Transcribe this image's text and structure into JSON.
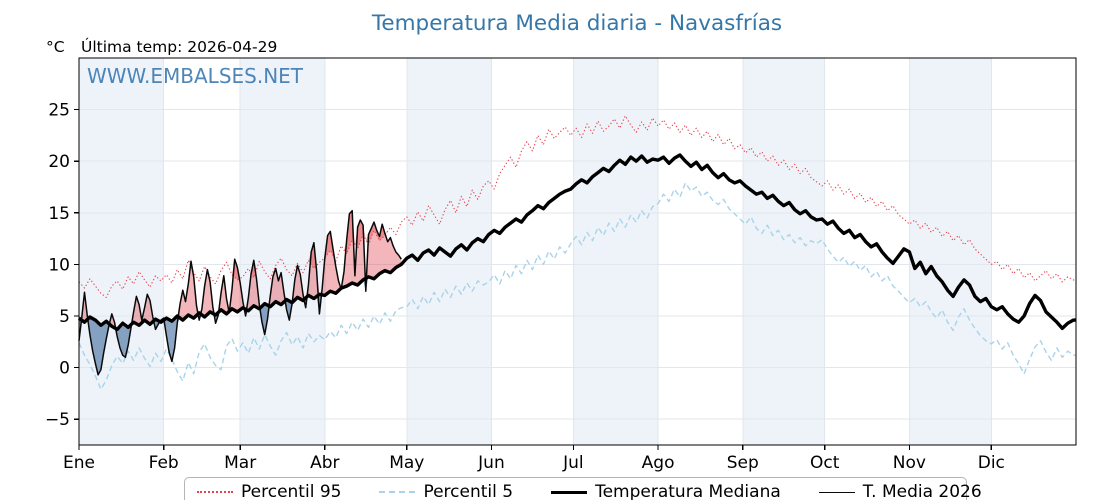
{
  "title": "Temperatura Media diaria - Navasfrías",
  "unit_label": "°C",
  "last_temp_label": "Última temp: 2026-04-29",
  "watermark": "WWW.EMBALSES.NET",
  "colors": {
    "title_blue": "#3577a8",
    "watermark_blue": "#3b7ab0",
    "grid": "#e2e7ee",
    "month_band": "#eef3f9",
    "spine": "#000000",
    "fill_above_median": "rgba(226,73,82,0.40)",
    "fill_below_median": "rgba(47,92,148,0.55)"
  },
  "legend": {
    "items": [
      {
        "label": "Percentil 95"
      },
      {
        "label": "Percentil 5"
      },
      {
        "label": "Temperatura Mediana"
      },
      {
        "label": "T. Media 2026"
      }
    ]
  },
  "chart_data": {
    "type": "line",
    "title": "Temperatura Media diaria - Navasfrías",
    "xlabel": "",
    "ylabel": "°C",
    "ylim": [
      -7.5,
      30
    ],
    "yticks": [
      -5,
      0,
      5,
      10,
      15,
      20,
      25
    ],
    "grid": true,
    "legend_position": "bottom",
    "days_in_year": 365,
    "month_labels": [
      "Ene",
      "Feb",
      "Mar",
      "Abr",
      "May",
      "Jun",
      "Jul",
      "Ago",
      "Sep",
      "Oct",
      "Nov",
      "Dic"
    ],
    "month_start_days": [
      0,
      31,
      59,
      90,
      120,
      151,
      181,
      212,
      243,
      273,
      304,
      334
    ],
    "shaded_month_indices": [
      0,
      2,
      4,
      6,
      8,
      10
    ],
    "series": [
      {
        "name": "Percentil 95",
        "color": "#e5444d",
        "style": "dotted",
        "width": 1.1,
        "day_step": 2,
        "values": [
          8.3,
          7.7,
          8.6,
          7.9,
          7.2,
          6.8,
          7.9,
          8.4,
          7.6,
          8.8,
          8.1,
          9.3,
          8.5,
          7.8,
          8.9,
          8.4,
          9.0,
          8.2,
          9.5,
          8.6,
          10.4,
          9.2,
          8.4,
          9.8,
          8.8,
          8.1,
          9.4,
          10.2,
          9.0,
          8.5,
          8.8,
          9.6,
          8.7,
          10.3,
          9.3,
          8.6,
          9.9,
          10.6,
          9.5,
          8.9,
          10.1,
          9.2,
          10.4,
          9.6,
          10.2,
          10.6,
          11.4,
          10.3,
          11.8,
          11.0,
          12.4,
          11.5,
          12.9,
          11.9,
          13.3,
          12.3,
          12.8,
          13.6,
          12.9,
          14.1,
          14.6,
          13.8,
          15.1,
          14.2,
          15.7,
          14.8,
          13.9,
          15.3,
          16.2,
          15.0,
          16.6,
          15.6,
          17.2,
          16.3,
          17.6,
          18.1,
          17.3,
          18.8,
          19.6,
          20.4,
          19.4,
          21.0,
          21.9,
          21.0,
          22.5,
          21.6,
          23.1,
          22.2,
          22.8,
          23.3,
          22.5,
          23.2,
          22.3,
          23.6,
          22.7,
          23.9,
          22.9,
          23.4,
          24.1,
          23.2,
          24.4,
          23.5,
          22.8,
          23.8,
          23.0,
          24.2,
          23.4,
          24.0,
          23.1,
          23.7,
          22.8,
          23.5,
          22.5,
          23.2,
          22.3,
          22.9,
          21.9,
          22.6,
          21.6,
          22.2,
          21.2,
          21.6,
          20.8,
          21.3,
          20.4,
          20.9,
          20.0,
          20.5,
          19.6,
          20.1,
          19.2,
          19.7,
          18.8,
          19.3,
          18.4,
          18.0,
          17.6,
          18.1,
          17.2,
          17.7,
          16.8,
          17.3,
          16.4,
          16.9,
          16.0,
          16.5,
          15.6,
          16.1,
          15.2,
          15.7,
          14.8,
          14.4,
          13.9,
          14.3,
          13.5,
          14.0,
          13.1,
          13.6,
          12.7,
          13.2,
          12.3,
          12.8,
          11.9,
          12.4,
          11.5,
          11.0,
          10.5,
          10.0,
          10.3,
          9.5,
          10.0,
          9.1,
          9.6,
          8.7,
          9.2,
          8.4,
          8.9,
          9.4,
          8.6,
          9.1,
          8.3,
          8.8,
          8.5
        ]
      },
      {
        "name": "Percentil 5",
        "color": "#a9d3e9",
        "style": "dashed",
        "width": 1.4,
        "day_step": 2,
        "values": [
          2.4,
          1.2,
          0.3,
          -0.8,
          -2.1,
          -1.2,
          0.2,
          1.1,
          0.4,
          1.6,
          0.7,
          1.9,
          0.9,
          0.1,
          1.4,
          0.6,
          1.8,
          0.8,
          -0.4,
          -1.3,
          0.5,
          -0.6,
          1.5,
          2.3,
          1.0,
          0.2,
          -0.2,
          2.1,
          2.8,
          1.6,
          2.4,
          1.4,
          2.9,
          1.8,
          3.2,
          2.1,
          1.2,
          2.6,
          3.4,
          2.2,
          3.0,
          1.9,
          3.3,
          2.5,
          3.1,
          2.7,
          3.5,
          2.9,
          4.1,
          3.3,
          4.4,
          3.6,
          4.7,
          3.9,
          5.0,
          4.2,
          5.3,
          4.5,
          5.5,
          5.8,
          5.9,
          6.6,
          5.7,
          6.9,
          6.1,
          7.3,
          6.4,
          7.6,
          6.8,
          7.9,
          7.1,
          8.2,
          7.4,
          8.4,
          8.0,
          8.3,
          9.0,
          8.1,
          9.4,
          8.6,
          9.9,
          9.1,
          10.4,
          9.5,
          10.9,
          10.0,
          11.3,
          10.5,
          11.7,
          11.1,
          12.0,
          12.7,
          11.9,
          13.1,
          12.3,
          13.6,
          12.8,
          14.0,
          13.2,
          14.4,
          13.6,
          14.8,
          14.1,
          15.2,
          14.5,
          15.6,
          15.9,
          16.8,
          16.1,
          17.3,
          16.5,
          17.9,
          17.1,
          17.5,
          16.6,
          17.0,
          16.2,
          15.8,
          16.3,
          15.4,
          14.9,
          14.4,
          13.9,
          14.6,
          13.5,
          13.0,
          13.8,
          12.8,
          13.3,
          12.4,
          12.9,
          12.1,
          12.6,
          11.8,
          12.3,
          12.0,
          12.4,
          11.5,
          10.8,
          10.2,
          10.7,
          9.8,
          10.3,
          9.4,
          9.9,
          8.8,
          9.3,
          8.4,
          8.9,
          7.9,
          7.4,
          6.8,
          6.3,
          6.7,
          5.9,
          6.4,
          5.4,
          4.8,
          5.6,
          4.4,
          3.6,
          4.9,
          5.7,
          4.6,
          3.8,
          3.1,
          2.6,
          2.3,
          2.7,
          1.8,
          2.4,
          1.2,
          0.4,
          -0.6,
          0.8,
          2.0,
          2.6,
          1.5,
          0.7,
          1.9,
          1.0,
          1.6,
          1.2
        ]
      },
      {
        "name": "Temperatura Mediana",
        "color": "#000000",
        "style": "solid",
        "width": 3.4,
        "day_step": 2,
        "values": [
          4.8,
          4.4,
          4.9,
          4.6,
          4.1,
          4.5,
          4.0,
          3.7,
          4.3,
          3.9,
          4.4,
          4.1,
          4.6,
          4.2,
          4.7,
          4.4,
          4.8,
          4.5,
          5.0,
          4.6,
          5.1,
          4.8,
          5.3,
          4.9,
          5.4,
          5.1,
          5.6,
          5.2,
          5.7,
          5.4,
          5.8,
          5.5,
          6.0,
          5.7,
          6.2,
          5.9,
          6.4,
          6.1,
          6.6,
          6.3,
          6.8,
          6.5,
          7.0,
          6.7,
          7.1,
          7.0,
          7.4,
          7.2,
          7.7,
          7.9,
          8.2,
          8.0,
          8.5,
          8.8,
          8.6,
          9.1,
          9.4,
          9.2,
          9.7,
          10.0,
          10.6,
          10.9,
          10.4,
          11.1,
          11.4,
          10.9,
          11.6,
          11.2,
          10.8,
          11.5,
          11.9,
          11.4,
          12.1,
          12.5,
          12.2,
          12.9,
          13.3,
          13.0,
          13.6,
          14.0,
          14.4,
          14.1,
          14.8,
          15.2,
          15.7,
          15.4,
          16.0,
          16.4,
          16.8,
          17.1,
          17.3,
          17.8,
          18.2,
          17.9,
          18.5,
          18.9,
          19.3,
          19.0,
          19.6,
          20.1,
          19.7,
          20.4,
          20.0,
          20.5,
          19.9,
          20.2,
          20.1,
          20.4,
          19.8,
          20.3,
          20.6,
          20.0,
          19.5,
          19.9,
          19.2,
          19.6,
          18.9,
          18.4,
          18.8,
          18.2,
          17.9,
          18.1,
          17.6,
          17.2,
          16.8,
          17.0,
          16.4,
          16.7,
          16.1,
          15.7,
          16.0,
          15.3,
          14.9,
          15.2,
          14.6,
          14.3,
          14.4,
          13.9,
          14.2,
          13.5,
          13.0,
          13.3,
          12.6,
          12.9,
          12.2,
          11.7,
          12.0,
          11.2,
          10.6,
          10.1,
          10.8,
          11.5,
          11.2,
          9.6,
          10.2,
          9.1,
          9.8,
          8.9,
          8.3,
          7.5,
          6.9,
          7.8,
          8.5,
          8.0,
          6.9,
          6.4,
          6.7,
          5.9,
          5.6,
          5.9,
          5.2,
          4.7,
          4.4,
          5.0,
          6.2,
          7.0,
          6.5,
          5.4,
          4.9,
          4.4,
          3.8,
          4.3,
          4.6
        ]
      },
      {
        "name": "T. Media 2026",
        "color": "#0a0a0a",
        "style": "solid",
        "width": 1.5,
        "day_step": 1,
        "values": [
          2.6,
          4.8,
          7.3,
          5.1,
          3.2,
          1.6,
          0.4,
          -0.7,
          -0.2,
          1.4,
          2.8,
          4.1,
          5.2,
          4.4,
          3.0,
          1.9,
          1.2,
          1.0,
          2.2,
          3.8,
          5.4,
          6.9,
          6.1,
          4.6,
          5.8,
          7.1,
          6.5,
          4.9,
          3.7,
          4.2,
          4.6,
          4.8,
          3.1,
          1.5,
          0.6,
          1.9,
          4.3,
          6.2,
          7.5,
          6.4,
          8.1,
          10.3,
          8.8,
          6.0,
          4.6,
          5.7,
          7.9,
          9.5,
          8.3,
          5.9,
          4.3,
          5.1,
          7.2,
          8.9,
          6.7,
          5.3,
          7.6,
          10.5,
          9.7,
          8.2,
          6.4,
          5.0,
          6.8,
          9.1,
          10.4,
          8.6,
          6.1,
          4.4,
          3.2,
          4.7,
          6.9,
          8.8,
          9.6,
          8.4,
          9.2,
          7.3,
          5.6,
          4.6,
          6.2,
          8.5,
          9.9,
          9.0,
          7.1,
          5.8,
          8.0,
          11.2,
          12.1,
          9.4,
          5.2,
          7.6,
          10.6,
          12.8,
          13.2,
          11.5,
          9.8,
          8.4,
          7.6,
          9.3,
          12.4,
          14.9,
          15.2,
          8.9,
          13.6,
          14.3,
          13.8,
          7.4,
          12.9,
          13.5,
          14.1,
          13.3,
          12.7,
          13.9,
          13.0,
          12.2,
          12.6,
          11.8,
          11.2,
          10.9,
          10.5
        ]
      }
    ],
    "fills": {
      "between": [
        "T. Media 2026",
        "Temperatura Mediana"
      ],
      "above_color": "rgba(226,73,82,0.40)",
      "below_color": "rgba(47,92,148,0.55)",
      "above_p95_emphasis": true
    }
  }
}
